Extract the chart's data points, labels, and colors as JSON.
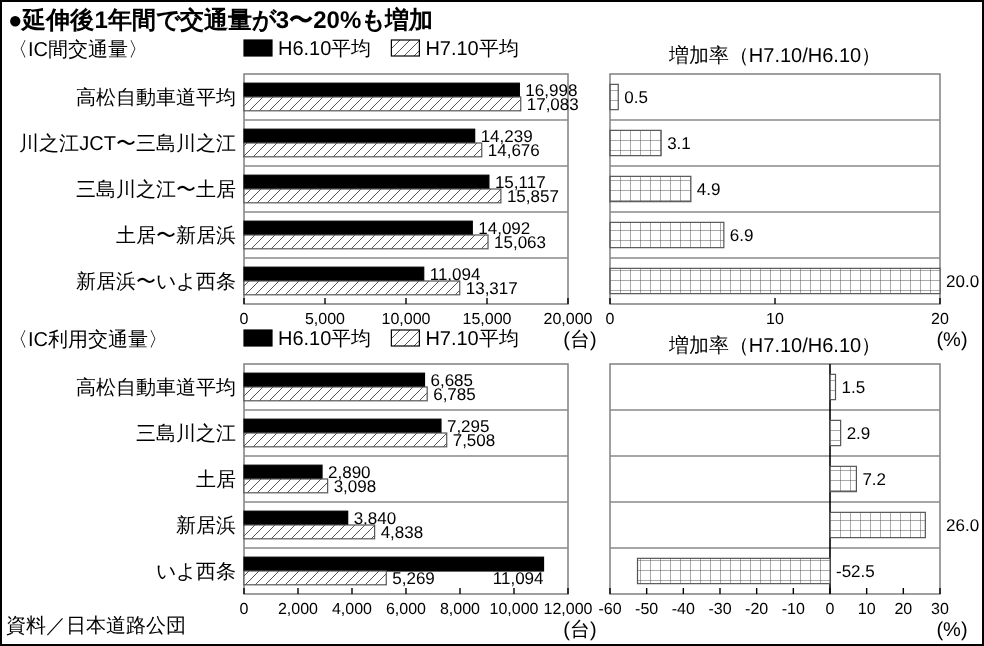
{
  "chart_data": [
    {
      "type": "bar",
      "orientation": "horizontal",
      "title": "●延伸後1年間で交通量が3〜20%も増加",
      "subtitle": "〈IC間交通量〉",
      "categories": [
        "高松自動車道平均",
        "川之江JCT〜三島川之江",
        "三島川之江〜土居",
        "土居〜新居浜",
        "新居浜〜いよ西条"
      ],
      "series": [
        {
          "name": "H6.10平均",
          "color": "#000000",
          "values": [
            16998,
            14239,
            15117,
            14092,
            11094
          ],
          "value_labels": [
            "16,998",
            "14,239",
            "15,117",
            "14,092",
            "11,094"
          ]
        },
        {
          "name": "H7.10平均",
          "color": "#555555",
          "values": [
            17083,
            14676,
            15857,
            15063,
            13317
          ],
          "value_labels": [
            "17,083",
            "14,676",
            "15,857",
            "15,063",
            "13,317"
          ]
        }
      ],
      "xlim": [
        0,
        20000
      ],
      "xticks": [
        0,
        {
          "value": 5000,
          "label": "5,000"
        },
        {
          "value": 10000,
          "label": "10,000"
        },
        {
          "value": 15000,
          "label": "15,000"
        },
        {
          "value": 20000,
          "label": "20,000"
        }
      ],
      "xlabel": "(台)",
      "legend": "top"
    },
    {
      "type": "bar",
      "orientation": "horizontal",
      "title": "増加率（H7.10/H6.10）",
      "categories": [
        null,
        null,
        null,
        null,
        null
      ],
      "color": "#555555",
      "values": [
        0.5,
        3.1,
        4.9,
        6.9,
        20.0
      ],
      "value_labels": [
        "0.5",
        "3.1",
        "4.9",
        "6.9",
        "20.0"
      ],
      "xlim": [
        0,
        20
      ],
      "xticks": [
        0,
        10,
        20
      ],
      "xlabel": "(%)"
    },
    {
      "type": "bar",
      "orientation": "horizontal",
      "subtitle": "〈IC利用交通量〉",
      "categories": [
        "高松自動車道平均",
        "三島川之江",
        "土居",
        "新居浜",
        "いよ西条"
      ],
      "series": [
        {
          "name": "H6.10平均",
          "color": "#000000",
          "values": [
            6685,
            7295,
            2890,
            3840,
            11094
          ],
          "value_labels": [
            "6,685",
            "7,295",
            "2,890",
            "3,840",
            "11,094"
          ]
        },
        {
          "name": "H7.10平均",
          "color": "#555555",
          "values": [
            6785,
            7508,
            3098,
            4838,
            5269
          ],
          "value_labels": [
            "6,785",
            "7,508",
            "3,098",
            "4,838",
            "5,269"
          ]
        }
      ],
      "xlim": [
        0,
        12000
      ],
      "xticks": [
        0,
        {
          "value": 2000,
          "label": "2,000"
        },
        {
          "value": 4000,
          "label": "4,000"
        },
        {
          "value": 6000,
          "label": "6,000"
        },
        {
          "value": 8000,
          "label": "8,000"
        },
        {
          "value": 10000,
          "label": "10,000"
        },
        {
          "value": 12000,
          "label": "12,000"
        }
      ],
      "xlabel": "(台)",
      "legend": "top",
      "annotations": [
        "資料／日本道路公団"
      ]
    },
    {
      "type": "bar",
      "orientation": "horizontal",
      "title": "増加率（H7.10/H6.10）",
      "categories": [
        null,
        null,
        null,
        null,
        null
      ],
      "color": "#555555",
      "values": [
        1.5,
        2.9,
        7.2,
        26.0,
        -52.5
      ],
      "value_labels": [
        "1.5",
        "2.9",
        "7.2",
        "26.0",
        "-52.5"
      ],
      "xlim": [
        -60,
        30
      ],
      "xticks": [
        -60,
        -50,
        -40,
        -30,
        -20,
        -10,
        0,
        10,
        20,
        30
      ],
      "xlabel": "(%)"
    }
  ]
}
